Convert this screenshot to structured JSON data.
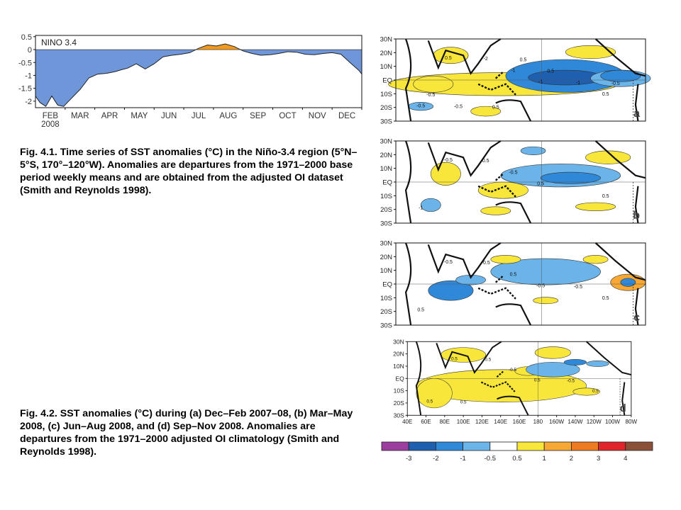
{
  "chart_data": [
    {
      "type": "area",
      "title": "NINO 3.4",
      "xlabel": "",
      "ylabel": "",
      "year_label": "2008",
      "x_tick_labels": [
        "FEB",
        "MAR",
        "APR",
        "MAY",
        "JUN",
        "JUL",
        "AUG",
        "SEP",
        "OCT",
        "NOV",
        "DEC"
      ],
      "y_tick_labels": [
        "0.5",
        "0",
        "-0.5",
        "-1",
        "-1.5",
        "-2"
      ],
      "ylim": [
        -2.25,
        0.55
      ],
      "xlim": [
        0,
        11
      ],
      "positive_color": "#f29a1f",
      "negative_color": "#6f96d8",
      "grid": false,
      "x": [
        0,
        0.15,
        0.35,
        0.55,
        0.75,
        0.95,
        1.2,
        1.5,
        1.8,
        2.1,
        2.4,
        2.7,
        2.9,
        3.1,
        3.4,
        3.7,
        4.0,
        4.3,
        4.6,
        4.9,
        5.2,
        5.5,
        5.8,
        6.1,
        6.4,
        6.7,
        7.0,
        7.3,
        7.6,
        7.9,
        8.2,
        8.5,
        8.8,
        9.1,
        9.4,
        9.7,
        10.0,
        10.3,
        10.6,
        10.9,
        11.0
      ],
      "y": [
        -1.8,
        -2.05,
        -2.2,
        -1.8,
        -2.15,
        -2.2,
        -1.9,
        -1.55,
        -1.1,
        -0.95,
        -0.92,
        -0.85,
        -0.78,
        -0.72,
        -0.55,
        -0.75,
        -0.55,
        -0.28,
        -0.22,
        -0.18,
        -0.12,
        0.05,
        0.18,
        0.14,
        0.22,
        0.12,
        -0.05,
        -0.15,
        -0.22,
        -0.2,
        -0.15,
        -0.08,
        -0.1,
        -0.18,
        -0.2,
        -0.15,
        -0.12,
        -0.18,
        -0.5,
        -0.8,
        -0.95
      ]
    },
    {
      "type": "heatmap",
      "panels": [
        "a",
        "b",
        "c",
        "d"
      ],
      "lat_labels": [
        "30N",
        "20N",
        "10N",
        "EQ",
        "10S",
        "20S",
        "30S"
      ],
      "lon_labels": [
        "40E",
        "60E",
        "80E",
        "100E",
        "120E",
        "140E",
        "160E",
        "180",
        "160W",
        "140W",
        "120W",
        "100W",
        "80W"
      ],
      "contour_labels": [
        [
          "0.5",
          "-1",
          "-0.5",
          "-1",
          "0.5",
          "-2",
          "-1",
          "-0.5",
          "0.5",
          "-0.5",
          "0.5",
          "-0.5",
          "0.5"
        ],
        [
          "-0.5",
          "0.5",
          "-1",
          "-0.5",
          "0.5",
          "0.5"
        ],
        [
          "-0.5",
          "-0.5",
          "0.5",
          "0.5",
          "0.5",
          "-0.5",
          "-0.5"
        ],
        [
          "0.5",
          "0.5",
          "0.5",
          "-0.5",
          "0.5",
          "0.5",
          "-0.5",
          "0.5"
        ]
      ],
      "colorbar": {
        "tick_labels": [
          "-3",
          "-2",
          "-1",
          "-0.5",
          "0.5",
          "1",
          "2",
          "3",
          "4"
        ],
        "colors": [
          "#9b3ea0",
          "#1f5fb0",
          "#2f88d8",
          "#6bb4ea",
          "#ffffff",
          "#f9e63a",
          "#f7a733",
          "#ee7a22",
          "#e1262b",
          "#8b5038"
        ]
      }
    }
  ],
  "captions": {
    "fig41": "Fig. 4.1. Time series of SST anomalies (°C) in the Niño-3.4 region (5°N–5°S, 170°–120°W). Anomalies are departures from the 1971–2000 base period weekly means and are obtained from the adjusted OI dataset (Smith and Reynolds 1998).",
    "fig42": "Fig. 4.2. SST anomalies (°C) during (a) Dec–Feb 2007–08, (b) Mar–May 2008, (c) Jun–Aug 2008, and (d) Sep–Nov 2008. Anomalies are departures from the 1971–2000 adjusted OI climatology (Smith and Reynolds 1998)."
  }
}
